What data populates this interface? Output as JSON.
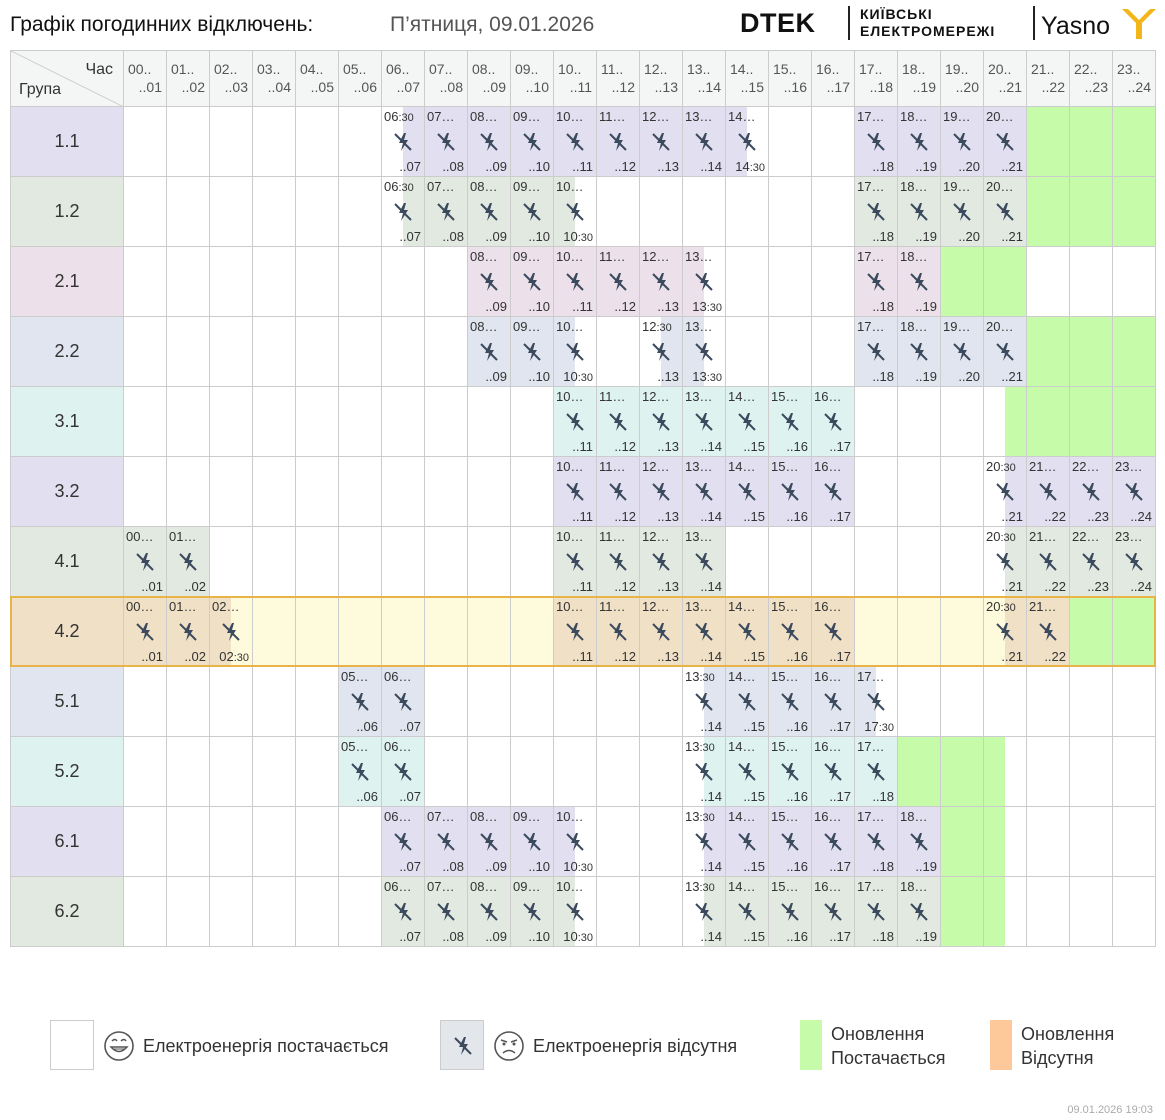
{
  "header": {
    "title": "Графік погодинних відключень:",
    "date": "П’ятниця, 09.01.2026",
    "brand_dtek": "DTEK",
    "brand_line1": "КИЇВСЬКІ",
    "brand_line2": "ЕЛЕКТРОМЕРЕЖІ",
    "brand_yasno": "Yasno"
  },
  "table": {
    "corner_hour": "Час",
    "corner_group": "Група",
    "hours": [
      {
        "a": "00..",
        "b": "..01"
      },
      {
        "a": "01..",
        "b": "..02"
      },
      {
        "a": "02..",
        "b": "..03"
      },
      {
        "a": "03..",
        "b": "..04"
      },
      {
        "a": "04..",
        "b": "..05"
      },
      {
        "a": "05..",
        "b": "..06"
      },
      {
        "a": "06..",
        "b": "..07"
      },
      {
        "a": "07..",
        "b": "..08"
      },
      {
        "a": "08..",
        "b": "..09"
      },
      {
        "a": "09..",
        "b": "..10"
      },
      {
        "a": "10..",
        "b": "..11"
      },
      {
        "a": "11..",
        "b": "..12"
      },
      {
        "a": "12..",
        "b": "..13"
      },
      {
        "a": "13..",
        "b": "..14"
      },
      {
        "a": "14..",
        "b": "..15"
      },
      {
        "a": "15..",
        "b": "..16"
      },
      {
        "a": "16..",
        "b": "..17"
      },
      {
        "a": "17..",
        "b": "..18"
      },
      {
        "a": "18..",
        "b": "..19"
      },
      {
        "a": "19..",
        "b": "..20"
      },
      {
        "a": "20..",
        "b": "..21"
      },
      {
        "a": "21..",
        "b": "..22"
      },
      {
        "a": "22..",
        "b": "..23"
      },
      {
        "a": "23..",
        "b": "..24"
      }
    ],
    "selected_group": "4.2",
    "groups": [
      {
        "name": "1.1",
        "color": "#e1dff0",
        "outages": [
          [
            6.5,
            14.5
          ],
          [
            17,
            21
          ]
        ],
        "updates_on": [
          [
            21,
            24
          ]
        ],
        "updates_off": []
      },
      {
        "name": "1.2",
        "color": "#e1e9e1",
        "outages": [
          [
            6.5,
            10.5
          ],
          [
            17,
            21
          ]
        ],
        "updates_on": [
          [
            21,
            24
          ]
        ],
        "updates_off": []
      },
      {
        "name": "2.1",
        "color": "#ece1ea",
        "outages": [
          [
            8,
            13.5
          ],
          [
            17,
            19
          ]
        ],
        "updates_on": [
          [
            19,
            21
          ]
        ],
        "updates_off": []
      },
      {
        "name": "2.2",
        "color": "#e1e5ef",
        "outages": [
          [
            8,
            10.5
          ],
          [
            12.5,
            13.5
          ],
          [
            17,
            21
          ]
        ],
        "updates_on": [
          [
            21,
            24
          ]
        ],
        "updates_off": []
      },
      {
        "name": "3.1",
        "color": "#def3f0",
        "outages": [
          [
            10,
            17
          ]
        ],
        "updates_on": [
          [
            20.5,
            24
          ]
        ],
        "updates_off": []
      },
      {
        "name": "3.2",
        "color": "#e1dff0",
        "outages": [
          [
            10,
            17
          ],
          [
            20.5,
            24
          ]
        ],
        "updates_on": [],
        "updates_off": []
      },
      {
        "name": "4.1",
        "color": "#e1e9e1",
        "outages": [
          [
            0,
            2
          ],
          [
            10,
            14
          ],
          [
            20.5,
            24
          ]
        ],
        "updates_on": [],
        "updates_off": []
      },
      {
        "name": "4.2",
        "color": "#efe0c6",
        "outages": [
          [
            0,
            2.5
          ],
          [
            10,
            17
          ],
          [
            20.5,
            22
          ]
        ],
        "updates_on": [
          [
            22,
            24
          ]
        ],
        "updates_off": []
      },
      {
        "name": "5.1",
        "color": "#e1e5ef",
        "outages": [
          [
            5,
            7
          ],
          [
            13.5,
            17.5
          ]
        ],
        "updates_on": [],
        "updates_off": []
      },
      {
        "name": "5.2",
        "color": "#def3f0",
        "outages": [
          [
            5,
            7
          ],
          [
            13.5,
            18
          ]
        ],
        "updates_on": [
          [
            18,
            20.5
          ]
        ],
        "updates_off": []
      },
      {
        "name": "6.1",
        "color": "#e1dff0",
        "outages": [
          [
            6,
            10.5
          ],
          [
            13.5,
            19
          ]
        ],
        "updates_on": [
          [
            19,
            20.5
          ]
        ],
        "updates_off": []
      },
      {
        "name": "6.2",
        "color": "#e1e9e1",
        "outages": [
          [
            6,
            10.5
          ],
          [
            13.5,
            19
          ]
        ],
        "updates_on": [
          [
            19,
            20.5
          ]
        ],
        "updates_off": []
      }
    ]
  },
  "legend": {
    "power_on": "Електроенергія постачається",
    "power_off": "Електроенергія відсутня",
    "update_on_1": "Оновлення",
    "update_on_2": "Постачається",
    "update_off_1": "Оновлення",
    "update_off_2": "Відсутня",
    "color_update_on": "#c6fbaa",
    "color_update_off": "#fdc99a",
    "color_selected_row": "#fefbdc"
  },
  "timestamp": "09.01.2026   19:03"
}
